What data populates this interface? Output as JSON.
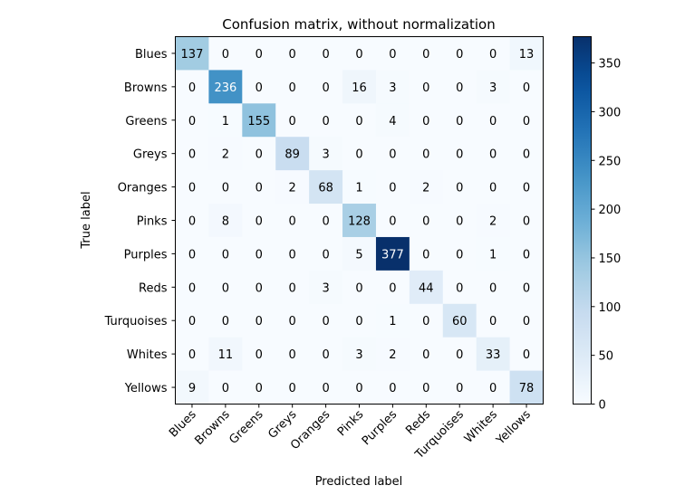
{
  "chart_data": {
    "type": "heatmap",
    "title": "Confusion matrix, without normalization",
    "xlabel": "Predicted label",
    "ylabel": "True label",
    "x_categories": [
      "Blues",
      "Browns",
      "Greens",
      "Greys",
      "Oranges",
      "Pinks",
      "Purples",
      "Reds",
      "Turquoises",
      "Whites",
      "Yellows"
    ],
    "y_categories": [
      "Blues",
      "Browns",
      "Greens",
      "Greys",
      "Oranges",
      "Pinks",
      "Purples",
      "Reds",
      "Turquoises",
      "Whites",
      "Yellows"
    ],
    "values": [
      [
        137,
        0,
        0,
        0,
        0,
        0,
        0,
        0,
        0,
        0,
        13
      ],
      [
        0,
        236,
        0,
        0,
        0,
        16,
        3,
        0,
        0,
        3,
        0
      ],
      [
        0,
        1,
        155,
        0,
        0,
        0,
        4,
        0,
        0,
        0,
        0
      ],
      [
        0,
        2,
        0,
        89,
        3,
        0,
        0,
        0,
        0,
        0,
        0
      ],
      [
        0,
        0,
        0,
        2,
        68,
        1,
        0,
        2,
        0,
        0,
        0
      ],
      [
        0,
        8,
        0,
        0,
        0,
        128,
        0,
        0,
        0,
        2,
        0
      ],
      [
        0,
        0,
        0,
        0,
        0,
        5,
        377,
        0,
        0,
        1,
        0
      ],
      [
        0,
        0,
        0,
        0,
        3,
        0,
        0,
        44,
        0,
        0,
        0
      ],
      [
        0,
        0,
        0,
        0,
        0,
        0,
        1,
        0,
        60,
        0,
        0
      ],
      [
        0,
        11,
        0,
        0,
        0,
        3,
        2,
        0,
        0,
        33,
        0
      ],
      [
        9,
        0,
        0,
        0,
        0,
        0,
        0,
        0,
        0,
        0,
        78
      ]
    ],
    "colormap": "Blues",
    "colorbar": {
      "min": 0,
      "max": 377,
      "ticks": [
        0,
        50,
        100,
        150,
        200,
        250,
        300,
        350
      ]
    }
  }
}
